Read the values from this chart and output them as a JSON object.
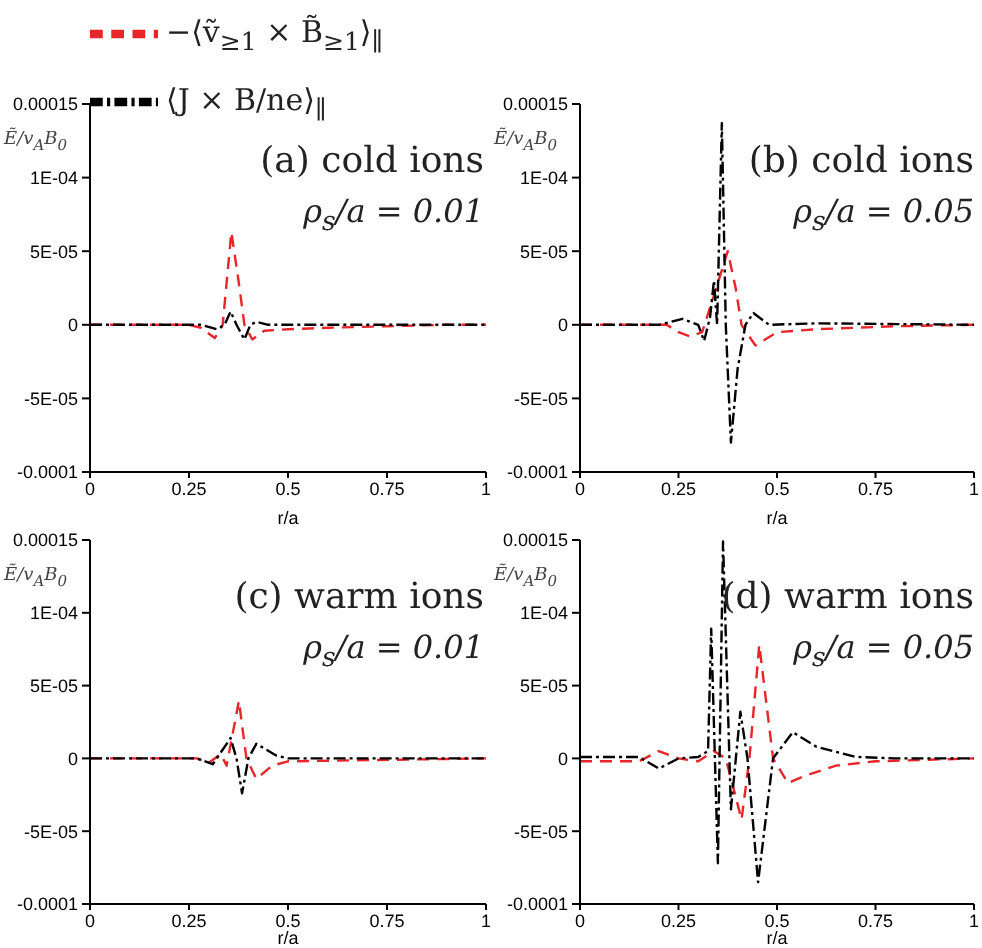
{
  "chart_data": [
    {
      "type": "line",
      "xlabel": "r/a",
      "ylabel": "Ẽ/v$_{A}$B$_{0}$",
      "legend": "top",
      "annotations": [
        "(a) cold ions",
        "ρ$_{s}$/a = 0.01"
      ],
      "xlim": [
        0,
        1
      ],
      "xticks": [
        0,
        0.25,
        0.5,
        0.75,
        1
      ],
      "ylim": [
        -0.0001,
        0.00015
      ],
      "yticks": [
        0.00015,
        {
          "value": 0.0001,
          "label": "1E-04"
        },
        {
          "value": 5e-05,
          "label": "5E-05"
        },
        0,
        {
          "value": -5e-05,
          "label": "-5E-05"
        },
        -0.0001
      ],
      "series": [
        {
          "name": "−⟨ṽ$_{≥1}$ × B̃$_{≥1}$⟩$_{∥}$",
          "color": "#e8262a",
          "line_style": "dashed",
          "x": [
            0,
            0.25,
            0.28,
            0.315,
            0.335,
            0.357,
            0.375,
            0.39,
            0.41,
            0.44,
            0.5,
            0.6,
            0.75,
            0.9,
            1
          ],
          "values": [
            0,
            0,
            -2e-06,
            -9e-06,
            0,
            6.3e-05,
            3e-05,
            0,
            -1e-05,
            -4e-06,
            -3e-06,
            -2e-06,
            -1e-06,
            0,
            0
          ]
        },
        {
          "name": "⟨J × B/ne⟩$_{∥}$",
          "color": "#000000",
          "line_style": "dotted",
          "x": [
            0,
            0.28,
            0.32,
            0.34,
            0.355,
            0.37,
            0.39,
            0.405,
            0.42,
            0.45,
            1
          ],
          "values": [
            0,
            0,
            -3e-06,
            0,
            9e-06,
            0,
            -1e-05,
            0,
            2e-06,
            0,
            0
          ]
        }
      ]
    },
    {
      "type": "line",
      "xlabel": "r/a",
      "ylabel": "Ẽ/v$_{A}$B$_{0}$",
      "annotations": [
        "(b) cold ions",
        "ρ$_{s}$/a = 0.05"
      ],
      "xlim": [
        0,
        1
      ],
      "xticks": [
        0,
        0.25,
        0.5,
        0.75,
        1
      ],
      "ylim": [
        -0.0001,
        0.00015
      ],
      "yticks": [
        0.00015,
        {
          "value": 0.0001,
          "label": "1E-04"
        },
        {
          "value": 5e-05,
          "label": "5E-05"
        },
        0,
        {
          "value": -5e-05,
          "label": "-5E-05"
        },
        -0.0001
      ],
      "series": [
        {
          "color": "#e8262a",
          "line_style": "dashed",
          "x": [
            0,
            0.22,
            0.25,
            0.28,
            0.31,
            0.34,
            0.375,
            0.395,
            0.41,
            0.445,
            0.5,
            0.6,
            0.8,
            1
          ],
          "values": [
            0,
            0,
            -5e-06,
            -8e-06,
            -5e-06,
            2e-05,
            5e-05,
            2.5e-05,
            0,
            -1.4e-05,
            -5e-06,
            -3e-06,
            -1e-06,
            0
          ]
        },
        {
          "color": "#000000",
          "line_style": "dotted",
          "x": [
            0,
            0.2,
            0.26,
            0.3,
            0.315,
            0.33,
            0.34,
            0.348,
            0.36,
            0.37,
            0.383,
            0.4,
            0.42,
            0.44,
            0.48,
            0.6,
            1
          ],
          "values": [
            0,
            0,
            4e-06,
            0,
            -1.1e-05,
            5e-06,
            3e-05,
            0,
            0.000137,
            0,
            -8e-05,
            -3e-05,
            0,
            8e-06,
            0,
            1e-06,
            0
          ]
        }
      ]
    },
    {
      "type": "line",
      "xlabel": "r/a",
      "ylabel": "Ẽ/v$_{A}$B$_{0}$",
      "annotations": [
        "(c) warm ions",
        "ρ$_{s}$/a = 0.01"
      ],
      "xlim": [
        0,
        1
      ],
      "xticks": [
        0,
        0.25,
        0.5,
        0.75,
        1
      ],
      "ylim": [
        -0.0001,
        0.00015
      ],
      "yticks": [
        0.00015,
        {
          "value": 0.0001,
          "label": "1E-04"
        },
        {
          "value": 5e-05,
          "label": "5E-05"
        },
        0,
        {
          "value": -5e-05,
          "label": "-5E-05"
        },
        -0.0001
      ],
      "series": [
        {
          "color": "#e8262a",
          "line_style": "dashed",
          "x": [
            0,
            0.27,
            0.3,
            0.33,
            0.345,
            0.376,
            0.395,
            0.42,
            0.46,
            0.5,
            0.75,
            1
          ],
          "values": [
            0,
            0,
            -3e-06,
            3e-06,
            -5e-06,
            3.95e-05,
            0,
            -1.4e-05,
            -5e-06,
            -2e-06,
            -1e-06,
            0
          ]
        },
        {
          "color": "#000000",
          "line_style": "dotted",
          "x": [
            0,
            0.27,
            0.31,
            0.355,
            0.37,
            0.384,
            0.4,
            0.42,
            0.47,
            0.5,
            1
          ],
          "values": [
            0,
            0,
            -4e-06,
            1.4e-05,
            0,
            -2.4e-05,
            0,
            1e-05,
            2e-06,
            0,
            0
          ]
        }
      ]
    },
    {
      "type": "line",
      "xlabel": "r/a",
      "ylabel": "Ẽ/v$_{A}$B$_{0}$",
      "annotations": [
        "(d) warm ions",
        "ρ$_{s}$/a = 0.05"
      ],
      "xlim": [
        0,
        1
      ],
      "xticks": [
        0,
        0.25,
        0.5,
        0.75,
        1
      ],
      "ylim": [
        -0.0001,
        0.00015
      ],
      "yticks": [
        0.00015,
        {
          "value": 0.0001,
          "label": "1E-04"
        },
        {
          "value": 5e-05,
          "label": "5E-05"
        },
        0,
        {
          "value": -5e-05,
          "label": "-5E-05"
        },
        -0.0001
      ],
      "series": [
        {
          "color": "#e8262a",
          "line_style": "dashed",
          "x": [
            0,
            0.15,
            0.2,
            0.25,
            0.3,
            0.34,
            0.37,
            0.41,
            0.43,
            0.455,
            0.49,
            0.528,
            0.57,
            0.65,
            0.75,
            1
          ],
          "values": [
            -2e-06,
            -2e-06,
            5e-06,
            0,
            -2e-06,
            5e-06,
            0,
            -4.2e-05,
            0,
            7.8e-05,
            0,
            -1.7e-05,
            -1.2e-05,
            -5e-06,
            -2e-06,
            0
          ]
        },
        {
          "color": "#000000",
          "line_style": "dotted",
          "x": [
            0,
            0.15,
            0.2,
            0.25,
            0.3,
            0.325,
            0.333,
            0.35,
            0.363,
            0.383,
            0.407,
            0.425,
            0.452,
            0.49,
            0.54,
            0.6,
            0.7,
            0.8,
            1
          ],
          "values": [
            1e-06,
            1e-06,
            -7e-06,
            0,
            1e-06,
            5e-06,
            8.9e-05,
            -7.2e-05,
            0.000149,
            -3.5e-05,
            3.2e-05,
            0,
            -8.5e-05,
            0,
            1.8e-05,
            8e-06,
            1e-06,
            0,
            0
          ]
        }
      ]
    }
  ]
}
